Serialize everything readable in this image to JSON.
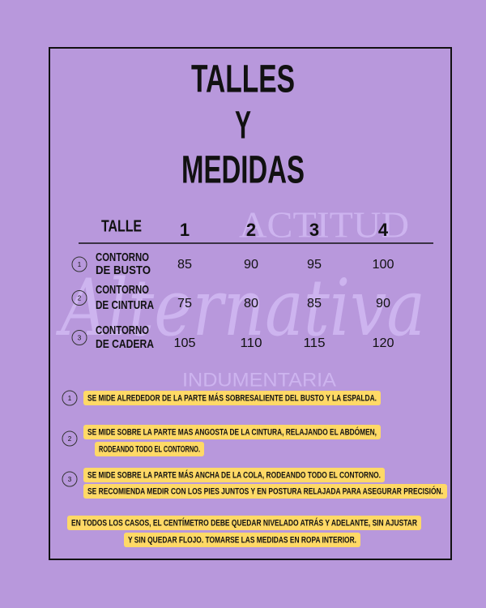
{
  "title": [
    "TALLES",
    "Y",
    "MEDIDAS"
  ],
  "watermark": [
    "ACTITUD",
    "Alternativa",
    "INDUMENTARIA"
  ],
  "table": {
    "header": [
      "TALLE",
      "1",
      "2",
      "3",
      "4"
    ],
    "rows": [
      {
        "marker": "1",
        "label": [
          "CONTORNO",
          "DE BUSTO"
        ],
        "values": [
          "85",
          "90",
          "95",
          "100"
        ]
      },
      {
        "marker": "2",
        "label": [
          "CONTORNO",
          "DE CINTURA"
        ],
        "values": [
          "75",
          "80",
          "85",
          "90"
        ]
      },
      {
        "marker": "3",
        "label": [
          "CONTORNO",
          "DE CADERA"
        ],
        "values": [
          "105",
          "110",
          "115",
          "120"
        ]
      }
    ]
  },
  "notes": [
    {
      "marker": "1",
      "lines": [
        "SE MIDE ALREDEDOR DE LA PARTE MÁS SOBRESALIENTE DEL BUSTO Y LA ESPALDA."
      ]
    },
    {
      "marker": "2",
      "lines": [
        "SE MIDE SOBRE LA PARTE MAS ANGOSTA DE LA CINTURA, RELAJANDO EL ABDÓMEN,",
        "RODEANDO TODO EL CONTORNO."
      ]
    },
    {
      "marker": "3",
      "lines": [
        "SE MIDE SOBRE LA PARTE MÁS ANCHA DE LA COLA, RODEANDO TODO EL CONTORNO.",
        "SE RECOMIENDA MEDIR CON LOS PIES JUNTOS Y EN POSTURA RELAJADA PARA ASEGURAR PRECISIÓN."
      ]
    }
  ],
  "footer": {
    "lines": [
      "EN TODOS LOS CASOS, EL CENTÍMETRO DEBE QUEDAR NIVELADO ATRÁS Y ADELANTE, SIN AJUSTAR",
      "Y SIN QUEDAR FLOJO. TOMARSE LAS MEDIDAS EN ROPA INTERIOR."
    ]
  }
}
